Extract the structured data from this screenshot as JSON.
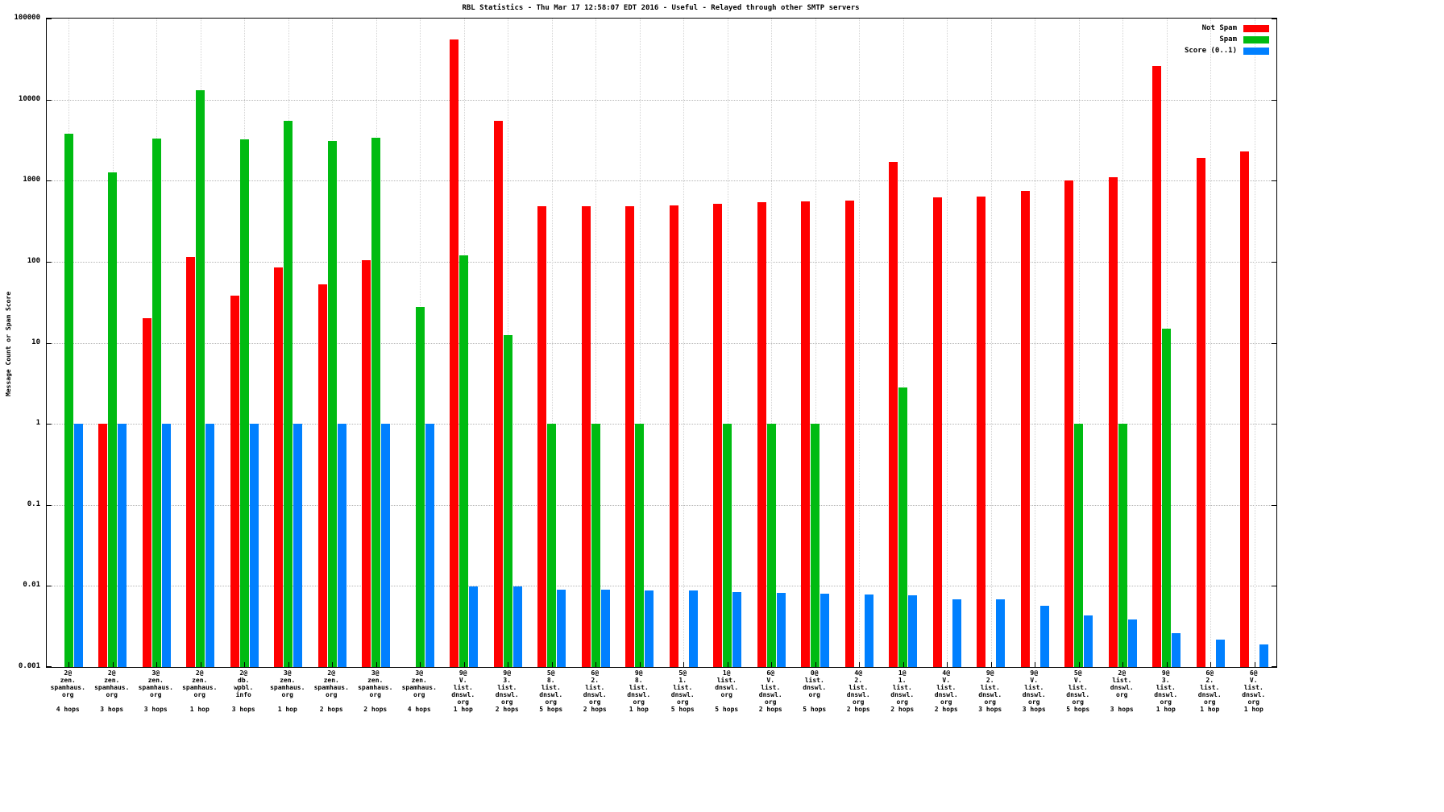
{
  "chart_data": {
    "type": "bar",
    "title": "RBL Statistics - Thu Mar 17 12:58:07 EDT 2016 - Useful - Relayed through other SMTP servers",
    "ylabel": "Message Count or Spam Score",
    "y_scale": "log",
    "ylim": [
      0.001,
      100000
    ],
    "yticks": [
      "100000",
      "10000",
      "1000",
      "100",
      "10",
      "1",
      "0.1",
      "0.01",
      "0.001"
    ],
    "grid": true,
    "legend_position": "top-right",
    "categories": [
      [
        "2@",
        "zen.",
        "spamhaus.",
        "org",
        "",
        "4 hops"
      ],
      [
        "2@",
        "zen.",
        "spamhaus.",
        "org",
        "",
        "3 hops"
      ],
      [
        "3@",
        "zen.",
        "spamhaus.",
        "org",
        "",
        "3 hops"
      ],
      [
        "2@",
        "zen.",
        "spamhaus.",
        "org",
        "",
        "1 hop"
      ],
      [
        "2@",
        "db.",
        "wpbl.",
        "info",
        "",
        "3 hops"
      ],
      [
        "3@",
        "zen.",
        "spamhaus.",
        "org",
        "",
        "1 hop"
      ],
      [
        "2@",
        "zen.",
        "spamhaus.",
        "org",
        "",
        "2 hops"
      ],
      [
        "3@",
        "zen.",
        "spamhaus.",
        "org",
        "",
        "2 hops"
      ],
      [
        "3@",
        "zen.",
        "spamhaus.",
        "org",
        "",
        "4 hops"
      ],
      [
        "9@",
        "V.",
        "list.",
        "dnswl.",
        "org",
        "1 hop"
      ],
      [
        "9@",
        "3.",
        "list.",
        "dnswl.",
        "org",
        "2 hops"
      ],
      [
        "5@",
        "8.",
        "list.",
        "dnswl.",
        "org",
        "5 hops"
      ],
      [
        "6@",
        "2.",
        "list.",
        "dnswl.",
        "org",
        "2 hops"
      ],
      [
        "9@",
        "8.",
        "list.",
        "dnswl.",
        "org",
        "1 hop"
      ],
      [
        "5@",
        "1.",
        "list.",
        "dnswl.",
        "org",
        "5 hops"
      ],
      [
        "1@",
        "list.",
        "dnswl.",
        "org",
        "",
        "5 hops"
      ],
      [
        "6@",
        "V.",
        "list.",
        "dnswl.",
        "org",
        "2 hops"
      ],
      [
        "0@",
        "list.",
        "dnswl.",
        "org",
        "",
        "5 hops"
      ],
      [
        "4@",
        "2.",
        "list.",
        "dnswl.",
        "org",
        "2 hops"
      ],
      [
        "1@",
        "1.",
        "list.",
        "dnswl.",
        "org",
        "2 hops"
      ],
      [
        "4@",
        "V.",
        "list.",
        "dnswl.",
        "org",
        "2 hops"
      ],
      [
        "9@",
        "2.",
        "list.",
        "dnswl.",
        "org",
        "3 hops"
      ],
      [
        "9@",
        "V.",
        "list.",
        "dnswl.",
        "org",
        "3 hops"
      ],
      [
        "5@",
        "V.",
        "list.",
        "dnswl.",
        "org",
        "5 hops"
      ],
      [
        "2@",
        "list.",
        "dnswl.",
        "org",
        "",
        "3 hops"
      ],
      [
        "9@",
        "3.",
        "list.",
        "dnswl.",
        "org",
        "1 hop"
      ],
      [
        "6@",
        "2.",
        "list.",
        "dnswl.",
        "org",
        "1 hop"
      ],
      [
        "6@",
        "V.",
        "list.",
        "dnswl.",
        "org",
        "1 hop"
      ]
    ],
    "series": [
      {
        "name": "Not Spam",
        "color": "#ff0000",
        "values": [
          null,
          1,
          20,
          115,
          38,
          85,
          52,
          105,
          null,
          55000,
          5500,
          480,
          480,
          480,
          490,
          520,
          540,
          550,
          570,
          1700,
          620,
          640,
          750,
          1000,
          1100,
          26000,
          1900,
          2300
        ]
      },
      {
        "name": "Spam",
        "color": "#00bb11",
        "values": [
          3800,
          1250,
          3300,
          13000,
          3200,
          5500,
          3100,
          3400,
          28,
          120,
          12.5,
          1,
          1,
          1,
          null,
          1,
          1,
          1,
          null,
          2.8,
          null,
          null,
          null,
          1,
          1,
          15,
          null,
          null
        ]
      },
      {
        "name": "Score (0..1)",
        "color": "#0080ff",
        "values": [
          1,
          1,
          1,
          1,
          1,
          1,
          1,
          1,
          1,
          0.0098,
          0.0098,
          0.009,
          0.009,
          0.0088,
          0.0087,
          0.0084,
          0.0082,
          0.008,
          0.0079,
          0.0077,
          0.0069,
          0.0068,
          0.0057,
          0.0043,
          0.0039,
          0.0026,
          0.0022,
          0.0019
        ]
      }
    ]
  }
}
